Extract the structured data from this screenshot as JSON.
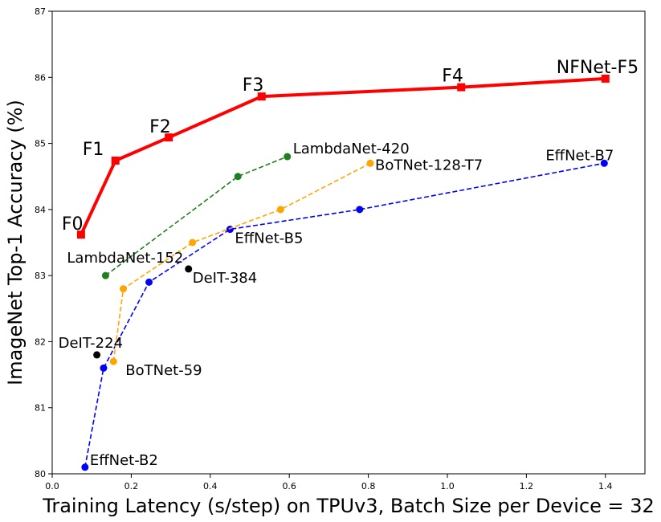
{
  "chart_data": {
    "type": "line",
    "xlabel": "Training Latency (s/step) on TPUv3, Batch Size per Device = 32",
    "ylabel": "ImageNet Top-1 Accuracy (%)",
    "xlim": [
      0.0,
      1.5
    ],
    "ylim": [
      80,
      87
    ],
    "xticks": [
      0.0,
      0.2,
      0.4,
      0.6,
      0.8,
      1.0,
      1.2,
      1.4
    ],
    "yticks": [
      80,
      81,
      82,
      83,
      84,
      85,
      86,
      87
    ],
    "grid": false,
    "series": [
      {
        "key": "nfnet",
        "color": "#ff0000",
        "line_style": "solid",
        "marker": "square",
        "x": [
          0.073,
          0.16,
          0.295,
          0.53,
          1.035,
          1.4
        ],
        "y": [
          83.62,
          84.74,
          85.09,
          85.71,
          85.85,
          85.98
        ],
        "labels": [
          "F0",
          "F1",
          "F2",
          "F3",
          "F4",
          "NFNet-F5"
        ]
      },
      {
        "key": "lambdanet",
        "color": "#1f7f1f",
        "line_style": "dashed",
        "marker": "circle",
        "x": [
          0.135,
          0.47,
          0.595
        ],
        "y": [
          83.0,
          84.5,
          84.8
        ],
        "labels": [
          "LambdaNet-152",
          "",
          "LambdaNet-420"
        ]
      },
      {
        "key": "botnet",
        "color": "#ffa500",
        "line_style": "dashed",
        "marker": "circle",
        "x": [
          0.155,
          0.18,
          0.355,
          0.578,
          0.805
        ],
        "y": [
          81.7,
          82.8,
          83.5,
          84.0,
          84.7
        ],
        "labels": [
          "BoTNet-59",
          "",
          "",
          "",
          "BoTNet-128-T7"
        ]
      },
      {
        "key": "effnet",
        "color": "#0000ff",
        "line_style": "dashed",
        "marker": "circle",
        "x": [
          0.083,
          0.13,
          0.245,
          0.45,
          0.778,
          1.397
        ],
        "y": [
          80.1,
          81.6,
          82.9,
          83.7,
          84.0,
          84.7
        ],
        "labels": [
          "EffNet-B2",
          "",
          "",
          "EffNet-B5",
          "",
          "EffNet-B7"
        ]
      },
      {
        "key": "deit",
        "color": "#000000",
        "line_style": "none",
        "marker": "circle",
        "x": [
          0.113,
          0.345
        ],
        "y": [
          81.8,
          83.1
        ],
        "labels": [
          "DeIT-224",
          "DeIT-384"
        ]
      }
    ]
  }
}
